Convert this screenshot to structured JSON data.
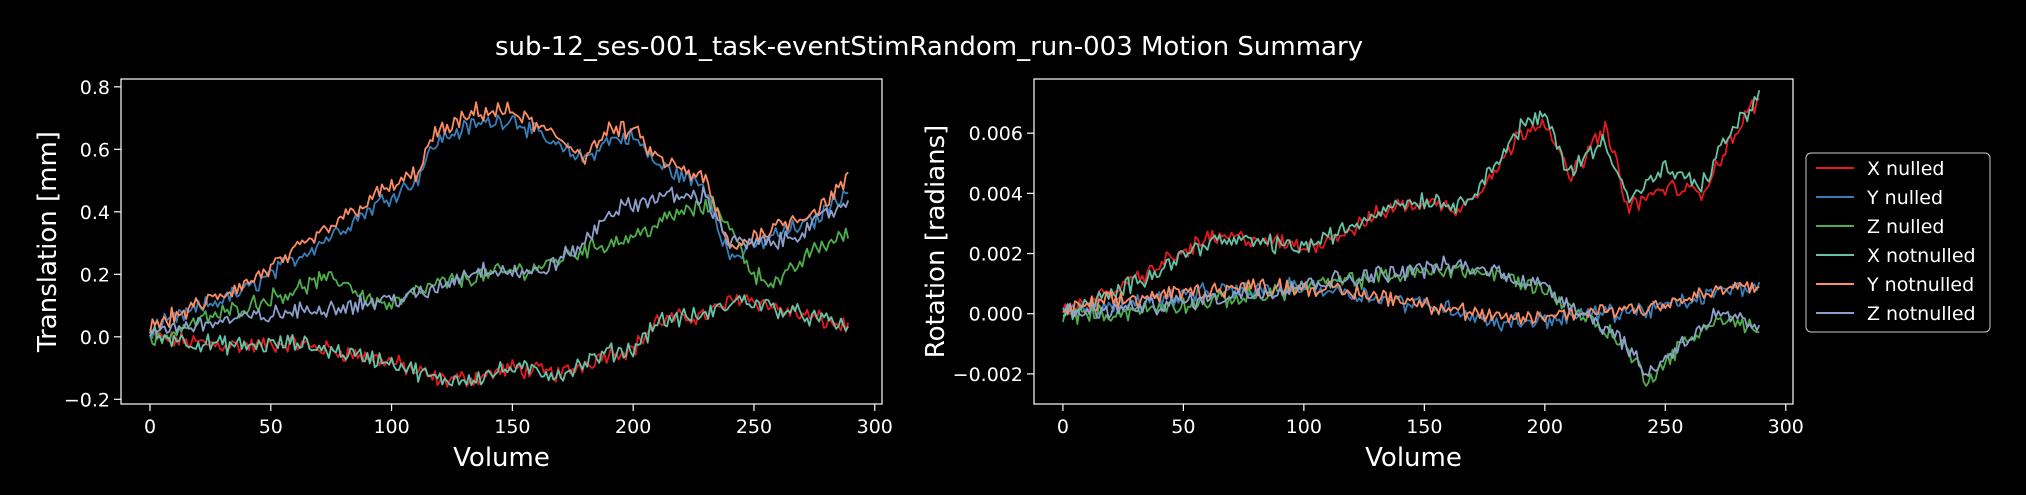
{
  "title": "sub-12_ses-001_task-eventStimRandom_run-003 Motion Summary",
  "colors": {
    "background": "#000000",
    "foreground": "#ffffff",
    "X nulled": "#e41a1c",
    "Y nulled": "#377eb8",
    "Z nulled": "#4daf4a",
    "X notnulled": "#66c2a5",
    "Y notnulled": "#fc8d62",
    "Z notnulled": "#8da0cb"
  },
  "legend": {
    "placement": "right of second plot",
    "entries": [
      "X nulled",
      "Y nulled",
      "Z nulled",
      "X notnulled",
      "Y notnulled",
      "Z notnulled"
    ]
  },
  "chart_data": [
    {
      "type": "line",
      "xlabel": "Volume",
      "ylabel": "Translation [mm]",
      "xlim": [
        -12,
        303
      ],
      "ylim": [
        -0.215,
        0.825
      ],
      "xticks": [
        0,
        50,
        100,
        150,
        200,
        250,
        300
      ],
      "yticks": [
        -0.2,
        0.0,
        0.2,
        0.4,
        0.6,
        0.8
      ],
      "ytick_labels": [
        "−0.2",
        "0.0",
        "0.2",
        "0.4",
        "0.6",
        "0.8"
      ],
      "grid": false,
      "n_volumes": 290,
      "series": [
        {
          "name": "X nulled",
          "x": [
            0,
            20,
            40,
            60,
            80,
            100,
            110,
            120,
            135,
            150,
            170,
            190,
            200,
            210,
            230,
            245,
            260,
            275,
            289
          ],
          "y": [
            0.0,
            -0.02,
            -0.03,
            -0.02,
            -0.05,
            -0.08,
            -0.11,
            -0.14,
            -0.13,
            -0.1,
            -0.12,
            -0.05,
            -0.04,
            0.05,
            0.07,
            0.13,
            0.09,
            0.06,
            0.03
          ]
        },
        {
          "name": "Y nulled",
          "x": [
            0,
            20,
            40,
            60,
            80,
            95,
            110,
            118,
            125,
            135,
            150,
            170,
            180,
            190,
            200,
            210,
            230,
            240,
            260,
            275,
            289
          ],
          "y": [
            0.02,
            0.09,
            0.15,
            0.25,
            0.35,
            0.43,
            0.5,
            0.62,
            0.65,
            0.68,
            0.7,
            0.6,
            0.57,
            0.63,
            0.64,
            0.55,
            0.48,
            0.25,
            0.33,
            0.37,
            0.48
          ]
        },
        {
          "name": "Z nulled",
          "x": [
            0,
            20,
            40,
            60,
            70,
            80,
            90,
            100,
            110,
            120,
            140,
            160,
            180,
            200,
            220,
            235,
            250,
            260,
            275,
            289
          ],
          "y": [
            -0.02,
            0.05,
            0.1,
            0.15,
            0.18,
            0.18,
            0.12,
            0.1,
            0.14,
            0.17,
            0.2,
            0.22,
            0.28,
            0.32,
            0.4,
            0.42,
            0.2,
            0.17,
            0.28,
            0.33
          ]
        },
        {
          "name": "X notnulled",
          "x": [
            0,
            20,
            40,
            60,
            80,
            100,
            110,
            120,
            135,
            150,
            170,
            190,
            200,
            210,
            230,
            245,
            260,
            275,
            289
          ],
          "y": [
            0.01,
            -0.02,
            -0.03,
            -0.02,
            -0.05,
            -0.08,
            -0.11,
            -0.14,
            -0.13,
            -0.1,
            -0.12,
            -0.05,
            -0.04,
            0.05,
            0.07,
            0.12,
            0.09,
            0.06,
            0.03
          ]
        },
        {
          "name": "Y notnulled",
          "x": [
            0,
            20,
            40,
            60,
            80,
            95,
            110,
            118,
            125,
            135,
            150,
            170,
            180,
            190,
            200,
            210,
            230,
            240,
            260,
            275,
            289
          ],
          "y": [
            0.03,
            0.1,
            0.17,
            0.27,
            0.38,
            0.46,
            0.52,
            0.65,
            0.67,
            0.72,
            0.72,
            0.63,
            0.58,
            0.66,
            0.66,
            0.57,
            0.5,
            0.28,
            0.36,
            0.4,
            0.5
          ]
        },
        {
          "name": "Z notnulled",
          "x": [
            0,
            20,
            40,
            60,
            80,
            100,
            115,
            130,
            140,
            160,
            180,
            190,
            200,
            210,
            230,
            240,
            260,
            275,
            289
          ],
          "y": [
            0.02,
            0.04,
            0.06,
            0.08,
            0.1,
            0.12,
            0.14,
            0.2,
            0.22,
            0.2,
            0.3,
            0.4,
            0.42,
            0.45,
            0.45,
            0.3,
            0.3,
            0.36,
            0.44
          ]
        }
      ]
    },
    {
      "type": "line",
      "xlabel": "Volume",
      "ylabel": "Rotation [radians]",
      "xlim": [
        -12,
        303
      ],
      "ylim": [
        -0.003,
        0.0078
      ],
      "xticks": [
        0,
        50,
        100,
        150,
        200,
        250,
        300
      ],
      "yticks": [
        -0.002,
        0.0,
        0.002,
        0.004,
        0.006
      ],
      "ytick_labels": [
        "−0.002",
        "0.000",
        "0.002",
        "0.004",
        "0.006"
      ],
      "grid": false,
      "n_volumes": 290,
      "series": [
        {
          "name": "X nulled",
          "x": [
            0,
            20,
            40,
            60,
            80,
            100,
            120,
            135,
            150,
            165,
            180,
            190,
            200,
            210,
            225,
            235,
            250,
            265,
            275,
            289
          ],
          "y": [
            0.0,
            0.0007,
            0.0016,
            0.0025,
            0.0025,
            0.0022,
            0.0028,
            0.0035,
            0.0037,
            0.0035,
            0.0048,
            0.006,
            0.0065,
            0.0045,
            0.0062,
            0.0035,
            0.0042,
            0.004,
            0.0055,
            0.0072
          ]
        },
        {
          "name": "Y nulled",
          "x": [
            0,
            20,
            40,
            60,
            80,
            100,
            120,
            140,
            160,
            180,
            200,
            220,
            240,
            260,
            275,
            289
          ],
          "y": [
            0.0,
            0.0003,
            0.0005,
            0.0007,
            0.0008,
            0.0009,
            0.0007,
            0.0004,
            0.0002,
            -0.0003,
            -0.0002,
            0.0,
            0.0001,
            0.0004,
            0.0008,
            0.0009
          ]
        },
        {
          "name": "Z nulled",
          "x": [
            0,
            20,
            40,
            60,
            80,
            100,
            120,
            140,
            160,
            180,
            200,
            215,
            230,
            243,
            255,
            270,
            280,
            289
          ],
          "y": [
            0.0,
            0.0,
            0.0002,
            0.0004,
            0.0006,
            0.0009,
            0.0011,
            0.0013,
            0.0015,
            0.0013,
            0.0008,
            0.0,
            -0.0008,
            -0.0022,
            -0.0012,
            -0.0002,
            -0.0003,
            -0.0006
          ]
        },
        {
          "name": "X notnulled",
          "x": [
            0,
            20,
            40,
            60,
            80,
            100,
            120,
            135,
            150,
            165,
            180,
            190,
            200,
            210,
            225,
            235,
            250,
            265,
            275,
            289
          ],
          "y": [
            0.0,
            0.0006,
            0.0015,
            0.0024,
            0.0024,
            0.0022,
            0.0029,
            0.0036,
            0.0038,
            0.0036,
            0.005,
            0.0062,
            0.0066,
            0.0047,
            0.0058,
            0.0038,
            0.0048,
            0.0042,
            0.0058,
            0.0072
          ]
        },
        {
          "name": "Y notnulled",
          "x": [
            0,
            20,
            40,
            60,
            80,
            100,
            120,
            140,
            160,
            180,
            200,
            220,
            240,
            260,
            275,
            289
          ],
          "y": [
            0.0001,
            0.0004,
            0.0006,
            0.0008,
            0.0009,
            0.0009,
            0.0007,
            0.0005,
            0.0002,
            -0.0002,
            -0.0001,
            0.0001,
            0.0002,
            0.0005,
            0.0008,
            0.001
          ]
        },
        {
          "name": "Z notnulled",
          "x": [
            0,
            20,
            40,
            60,
            80,
            100,
            120,
            140,
            160,
            180,
            200,
            215,
            230,
            243,
            255,
            270,
            280,
            289
          ],
          "y": [
            0.0,
            0.0001,
            0.0003,
            0.0005,
            0.0007,
            0.001,
            0.0012,
            0.0014,
            0.0016,
            0.0014,
            0.0009,
            0.0001,
            -0.0007,
            -0.002,
            -0.0011,
            -0.0001,
            -0.0002,
            -0.0005
          ]
        }
      ]
    }
  ]
}
